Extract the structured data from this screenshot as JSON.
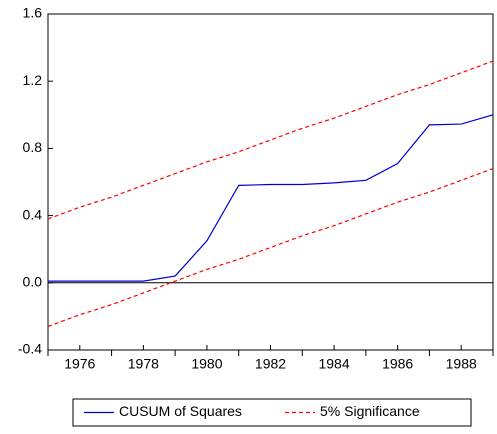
{
  "chart_data": {
    "type": "line",
    "x": [
      1975,
      1976,
      1977,
      1978,
      1979,
      1980,
      1981,
      1982,
      1983,
      1984,
      1985,
      1986,
      1987,
      1988,
      1989
    ],
    "series": [
      {
        "name": "CUSUM of Squares",
        "color": "#0000cc",
        "dash": false,
        "values": [
          0.01,
          0.01,
          0.01,
          0.01,
          0.04,
          0.25,
          0.58,
          0.585,
          0.585,
          0.595,
          0.61,
          0.71,
          0.94,
          0.945,
          1.0
        ]
      },
      {
        "name": "5% Significance",
        "color": "#ff0000",
        "dash": true,
        "values": [
          0.38,
          0.45,
          0.51,
          0.58,
          0.65,
          0.72,
          0.78,
          0.85,
          0.92,
          0.98,
          1.05,
          1.12,
          1.18,
          1.25,
          1.32
        ]
      },
      {
        "color": "#ff0000",
        "dash": true,
        "values": [
          -0.26,
          -0.19,
          -0.13,
          -0.06,
          0.01,
          0.08,
          0.14,
          0.21,
          0.28,
          0.34,
          0.41,
          0.48,
          0.54,
          0.61,
          0.68
        ]
      }
    ],
    "xlim": [
      1975,
      1989
    ],
    "xticks": [
      1976,
      1978,
      1980,
      1982,
      1984,
      1986,
      1988
    ],
    "x_minor_ticks": [
      1975,
      1977,
      1979,
      1981,
      1983,
      1985,
      1987,
      1989
    ],
    "ylim": [
      -0.4,
      1.6
    ],
    "yticks": [
      {
        "value": -0.4,
        "label": "-0.4"
      },
      {
        "value": 0,
        "label": "0.0"
      },
      0.4,
      0.8,
      1.2,
      1.6
    ],
    "reference_line": 0,
    "grid": false,
    "legend": "bottom"
  }
}
